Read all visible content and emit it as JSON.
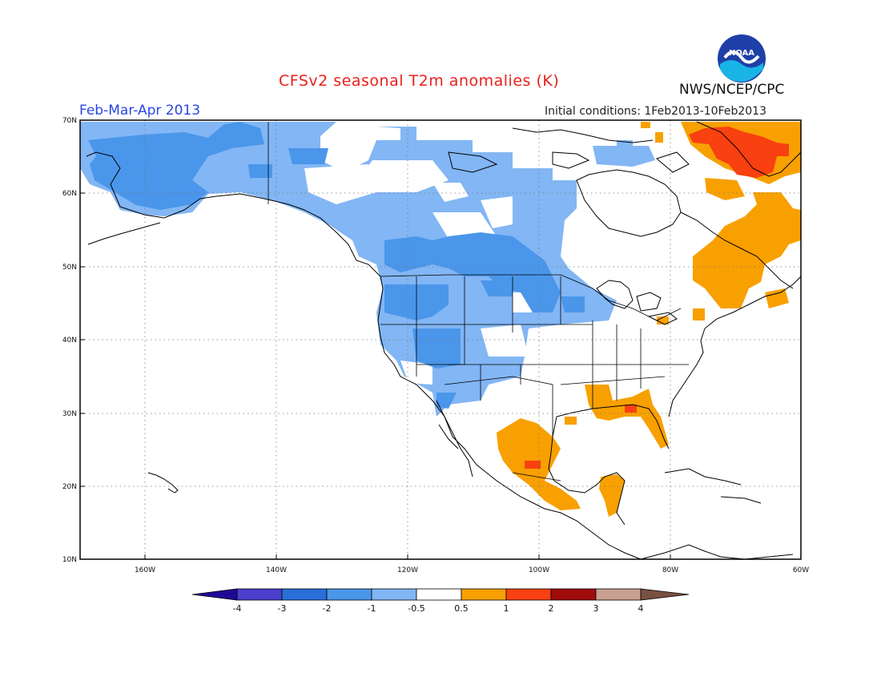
{
  "title": "CFSv2 seasonal T2m anomalies (K)",
  "period": "Feb-Mar-Apr 2013",
  "initial_conditions": "Initial conditions: 1Feb2013-10Feb2013",
  "agency": "NWS/NCEP/CPC",
  "logo_text": "NOAA",
  "lat_labels": [
    "70N",
    "60N",
    "50N",
    "40N",
    "30N",
    "20N",
    "10N"
  ],
  "lon_labels": [
    "160W",
    "140W",
    "120W",
    "100W",
    "80W",
    "60W"
  ],
  "colorbar": {
    "labels": [
      "-4",
      "-3",
      "-2",
      "-1",
      "-0.5",
      "0.5",
      "1",
      "2",
      "3",
      "4"
    ],
    "colors": {
      "lt_m4": "#1e0a96",
      "m4_m3": "#4a40cc",
      "m3_m2": "#2a6ed8",
      "m2_m1": "#4a96ea",
      "m1_m05": "#82b6f4",
      "neutral": "#ffffff",
      "p05_p1": "#f8a000",
      "p1_p2": "#f84010",
      "p2_p3": "#a00c0c",
      "p3_p4": "#c8a090",
      "gt_p4": "#7a5040"
    }
  },
  "map_colors": {
    "cold_light": "#82b6f4",
    "cold_mid": "#4a96ea",
    "warm_light": "#f8a000",
    "warm_mid": "#f84010"
  }
}
